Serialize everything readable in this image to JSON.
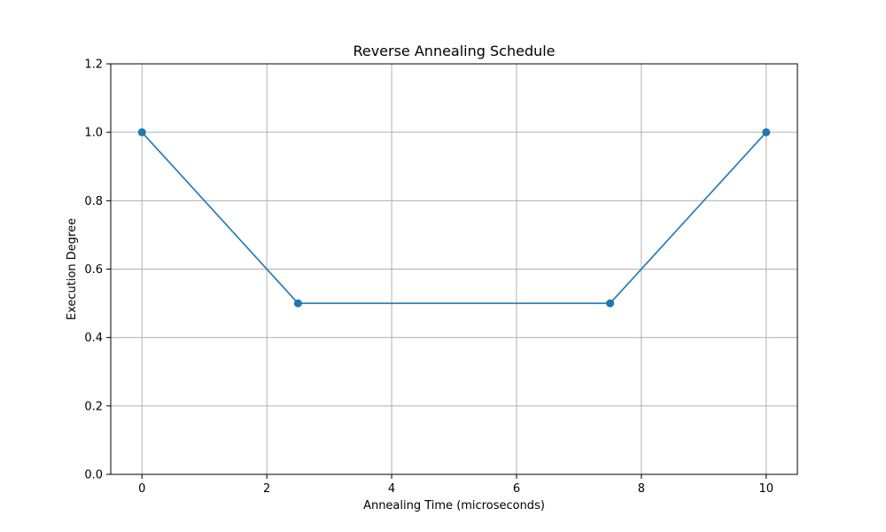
{
  "chart_data": {
    "type": "line",
    "title": "Reverse Annealing Schedule",
    "xlabel": "Annealing Time (microseconds)",
    "ylabel": "Execution Degree",
    "xlim": [
      -0.5,
      10.5
    ],
    "ylim": [
      0.0,
      1.2
    ],
    "xticks": [
      0,
      2,
      4,
      6,
      8,
      10
    ],
    "yticks": [
      0.0,
      0.2,
      0.4,
      0.6,
      0.8,
      1.0,
      1.2
    ],
    "xtick_labels": [
      "0",
      "2",
      "4",
      "6",
      "8",
      "10"
    ],
    "ytick_labels": [
      "0.0",
      "0.2",
      "0.4",
      "0.6",
      "0.8",
      "1.0",
      "1.2"
    ],
    "grid": true,
    "marker": "circle",
    "color": "#1f77b4",
    "series": [
      {
        "x": [
          0,
          2.5,
          7.5,
          10
        ],
        "y": [
          1.0,
          0.5,
          0.5,
          1.0
        ]
      }
    ]
  }
}
